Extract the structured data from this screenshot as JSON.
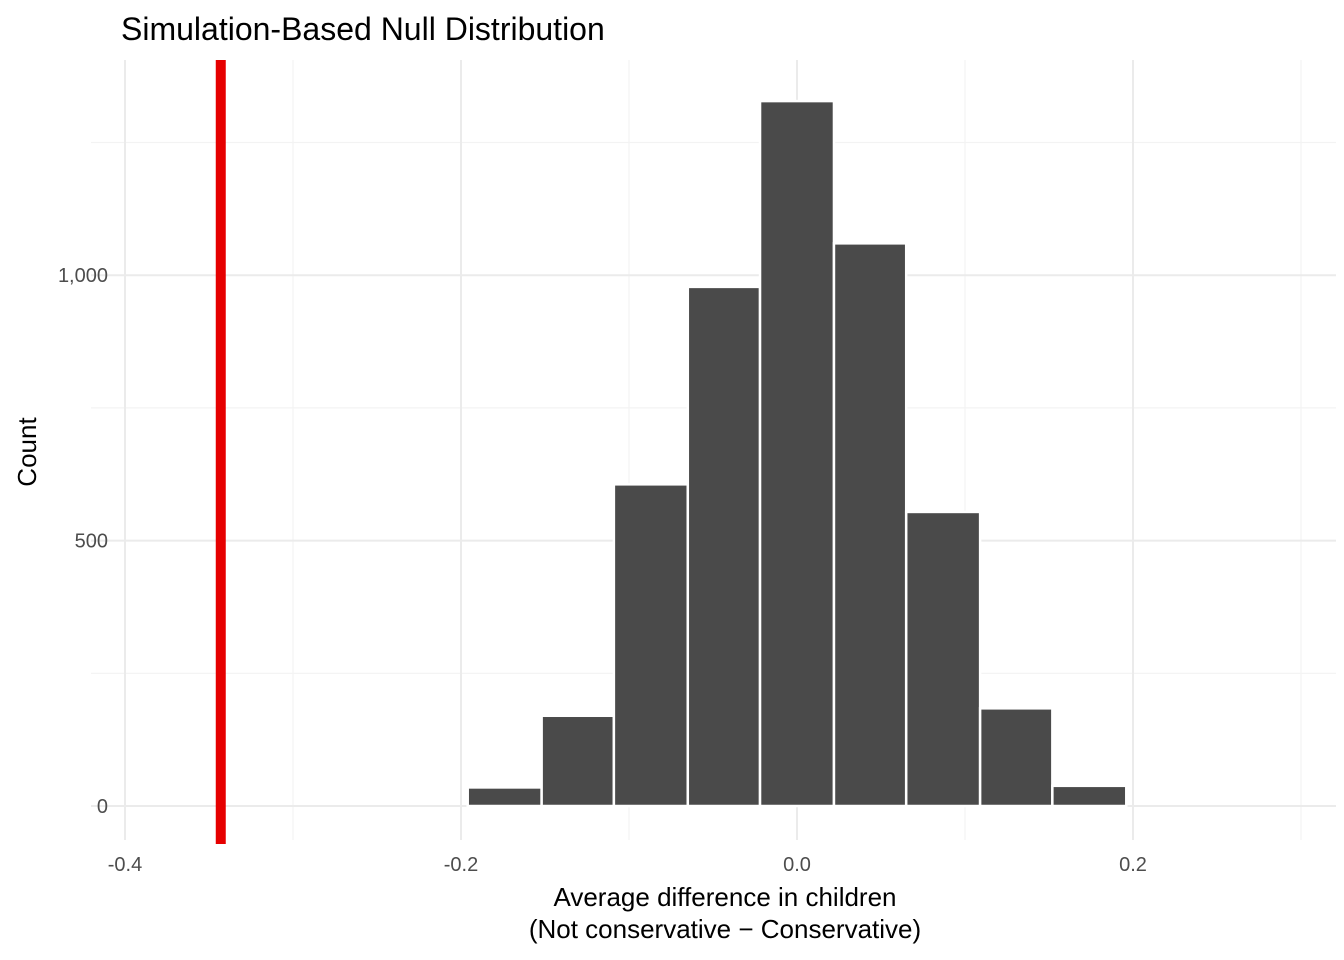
{
  "chart_data": {
    "type": "bar",
    "title": "Simulation-Based Null Distribution",
    "xlabel_line1": "Average difference in children",
    "xlabel_line2": "(Not conservative − Conservative)",
    "ylabel": "Count",
    "xlim": [
      -0.4,
      0.3
    ],
    "ylim": [
      0,
      1330
    ],
    "x_ticks": [
      {
        "value": -0.4,
        "label": "-0.4"
      },
      {
        "value": -0.2,
        "label": "-0.2"
      },
      {
        "value": 0.0,
        "label": "0.0"
      },
      {
        "value": 0.2,
        "label": "0.2"
      }
    ],
    "y_ticks": [
      {
        "value": 0,
        "label": "0"
      },
      {
        "value": 500,
        "label": "500"
      },
      {
        "value": 1000,
        "label": "1,000"
      }
    ],
    "bins": [
      {
        "x0": -0.196,
        "x1": -0.152,
        "count": 35
      },
      {
        "x0": -0.152,
        "x1": -0.109,
        "count": 170
      },
      {
        "x0": -0.109,
        "x1": -0.065,
        "count": 606
      },
      {
        "x0": -0.065,
        "x1": -0.022,
        "count": 978
      },
      {
        "x0": -0.022,
        "x1": 0.022,
        "count": 1328
      },
      {
        "x0": 0.022,
        "x1": 0.065,
        "count": 1060
      },
      {
        "x0": 0.065,
        "x1": 0.109,
        "count": 554
      },
      {
        "x0": 0.109,
        "x1": 0.152,
        "count": 184
      },
      {
        "x0": 0.152,
        "x1": 0.196,
        "count": 38
      }
    ],
    "observed_statistic": -0.343,
    "colors": {
      "bar_fill": "#4a4a4a",
      "bar_outline": "#ffffff",
      "observed_line": "#e60000"
    },
    "grid": true
  }
}
